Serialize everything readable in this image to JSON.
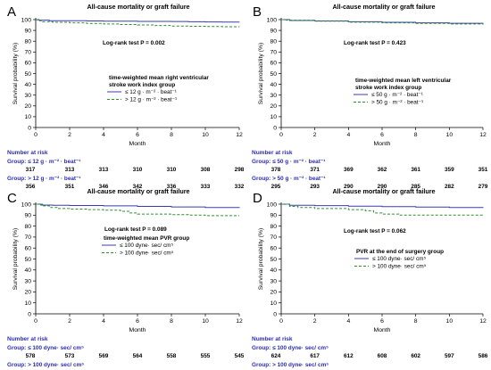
{
  "colors": {
    "series1": "#3b3bb0",
    "series2": "#2f8f2f",
    "risk_text": "#2d2db4",
    "axis": "#000000"
  },
  "chart_data": [
    {
      "panel": "A",
      "type": "line",
      "title": "All-cause mortality or graft failure",
      "xlabel": "Month",
      "ylabel": "Survival probability (%)",
      "xlim": [
        0,
        12
      ],
      "ylim": [
        0,
        100
      ],
      "xticks": [
        0,
        2,
        4,
        6,
        8,
        10,
        12
      ],
      "yticks": [
        0,
        10,
        20,
        30,
        40,
        50,
        60,
        70,
        80,
        90,
        100
      ],
      "grid": false,
      "annotation": "Log-rank test P = 0.002",
      "legend": {
        "title_lines": [
          "time-weighted mean right ventricular",
          "stroke work index group"
        ],
        "items": [
          "≤ 12 g · m⁻² · beat⁻¹",
          "> 12 g · m⁻² · beat⁻¹"
        ]
      },
      "series": [
        {
          "name": "≤ 12 g · m⁻² · beat⁻¹",
          "style": "solid",
          "points": [
            [
              0,
              100
            ],
            [
              0.2,
              99.5
            ],
            [
              0.8,
              99
            ],
            [
              2,
              99
            ],
            [
              3,
              98.8
            ],
            [
              4,
              98.6
            ],
            [
              5,
              98.5
            ],
            [
              6,
              98.4
            ],
            [
              7,
              98.3
            ],
            [
              8,
              98.2
            ],
            [
              9,
              98
            ],
            [
              10,
              97.8
            ],
            [
              11,
              97.7
            ],
            [
              12,
              97.6
            ]
          ]
        },
        {
          "name": "> 12 g · m⁻² · beat⁻¹",
          "style": "dashed",
          "points": [
            [
              0,
              100
            ],
            [
              0.1,
              99
            ],
            [
              0.4,
              98
            ],
            [
              1,
              97.5
            ],
            [
              2,
              97
            ],
            [
              3,
              96.5
            ],
            [
              4,
              96
            ],
            [
              5,
              95.5
            ],
            [
              6,
              95
            ],
            [
              7,
              94.5
            ],
            [
              8,
              94
            ],
            [
              9,
              93.8
            ],
            [
              10,
              93.6
            ],
            [
              11,
              93.4
            ],
            [
              12,
              93.3
            ]
          ]
        }
      ],
      "risk_table": {
        "header": "Number at risk",
        "groups": [
          {
            "label": "Group: ≤ 12 g · m⁻² · beat⁻¹",
            "values": [
              "317",
              "313",
              "313",
              "310",
              "310",
              "308",
              "298"
            ]
          },
          {
            "label": "Group: > 12 g · m⁻² · beat⁻¹",
            "values": [
              "356",
              "351",
              "346",
              "342",
              "336",
              "333",
              "332"
            ]
          }
        ]
      }
    },
    {
      "panel": "B",
      "type": "line",
      "title": "All-cause mortality or graft failure",
      "xlabel": "Month",
      "ylabel": "Survival probability (%)",
      "xlim": [
        0,
        12
      ],
      "ylim": [
        0,
        100
      ],
      "xticks": [
        0,
        2,
        4,
        6,
        8,
        10,
        12
      ],
      "yticks": [
        0,
        10,
        20,
        30,
        40,
        50,
        60,
        70,
        80,
        90,
        100
      ],
      "grid": false,
      "annotation": "Log-rank test P = 0.423",
      "legend": {
        "title_lines": [
          "time-weighted mean left ventricular",
          "stroke work index group"
        ],
        "items": [
          "≤ 50 g · m⁻² · beat⁻¹",
          "> 50 g · m⁻² · beat⁻¹"
        ]
      },
      "series": [
        {
          "name": "≤ 50 g · m⁻² · beat⁻¹",
          "style": "solid",
          "points": [
            [
              0,
              100
            ],
            [
              0.5,
              99.2
            ],
            [
              2,
              98.8
            ],
            [
              4,
              98
            ],
            [
              6,
              97.5
            ],
            [
              8,
              97
            ],
            [
              10,
              96.6
            ],
            [
              12,
              96.2
            ]
          ]
        },
        {
          "name": "> 50 g · m⁻² · beat⁻¹",
          "style": "dashed",
          "points": [
            [
              0,
              100
            ],
            [
              0.3,
              99.5
            ],
            [
              2,
              98.5
            ],
            [
              4,
              97.6
            ],
            [
              6,
              97
            ],
            [
              8,
              96.5
            ],
            [
              10,
              96
            ],
            [
              12,
              95.4
            ]
          ]
        }
      ],
      "risk_table": {
        "header": "Number at risk",
        "groups": [
          {
            "label": "Group: ≤ 50 g · m⁻² · beat⁻¹",
            "values": [
              "378",
              "371",
              "369",
              "362",
              "361",
              "359",
              "351"
            ]
          },
          {
            "label": "Group: > 50 g · m⁻² · beat⁻¹",
            "values": [
              "295",
              "293",
              "290",
              "290",
              "285",
              "282",
              "279"
            ]
          }
        ]
      }
    },
    {
      "panel": "C",
      "type": "line",
      "title": "All-cause mortality or graft failure",
      "xlabel": "Month",
      "ylabel": "Survival probability (%)",
      "xlim": [
        0,
        12
      ],
      "ylim": [
        0,
        100
      ],
      "xticks": [
        0,
        2,
        4,
        6,
        8,
        10,
        12
      ],
      "yticks": [
        0,
        10,
        20,
        30,
        40,
        50,
        60,
        70,
        80,
        90,
        100
      ],
      "grid": false,
      "annotation": "Log-rank test P = 0.089",
      "legend": {
        "title_lines": [
          "time-weighted mean PVR group"
        ],
        "items": [
          "≤ 100 dyne· sec/ cm⁵",
          "> 100 dyne· sec/ cm⁵"
        ]
      },
      "series": [
        {
          "name": "≤ 100 dyne· sec/ cm⁵",
          "style": "solid",
          "points": [
            [
              0,
              100
            ],
            [
              0.3,
              99.2
            ],
            [
              1,
              99
            ],
            [
              2,
              98.8
            ],
            [
              4,
              98.5
            ],
            [
              6,
              98
            ],
            [
              8,
              97.5
            ],
            [
              10,
              97
            ],
            [
              12,
              96.5
            ]
          ]
        },
        {
          "name": "> 100 dyne· sec/ cm⁵",
          "style": "dashed",
          "points": [
            [
              0,
              100
            ],
            [
              0.4,
              98.5
            ],
            [
              0.8,
              97
            ],
            [
              1.3,
              96
            ],
            [
              2,
              95.5
            ],
            [
              3,
              95
            ],
            [
              4,
              94.5
            ],
            [
              5,
              93.5
            ],
            [
              5.5,
              92
            ],
            [
              6,
              91
            ],
            [
              8,
              90.5
            ],
            [
              9,
              90
            ],
            [
              10,
              89.5
            ],
            [
              12,
              89.5
            ]
          ]
        }
      ],
      "risk_table": {
        "header": "Number at risk",
        "groups": [
          {
            "label": "Group: ≤ 100 dyne· sec/ cm⁵",
            "values": [
              "578",
              "573",
              "569",
              "564",
              "558",
              "555",
              "545"
            ]
          },
          {
            "label": "Group: > 100 dyne· sec/ cm⁵",
            "values": [
              "95",
              "91",
              "90",
              "88",
              "88",
              "86",
              "85"
            ]
          }
        ]
      }
    },
    {
      "panel": "D",
      "type": "line",
      "title": "All-cause mortality or graft failure",
      "xlabel": "Month",
      "ylabel": "Survival probability (%)",
      "xlim": [
        0,
        12
      ],
      "ylim": [
        0,
        100
      ],
      "xticks": [
        0,
        2,
        4,
        6,
        8,
        10,
        12
      ],
      "yticks": [
        0,
        10,
        20,
        30,
        40,
        50,
        60,
        70,
        80,
        90,
        100
      ],
      "grid": false,
      "annotation": "Log-rank test P = 0.062",
      "legend": {
        "title_lines": [
          "PVR at the end of surgery group"
        ],
        "items": [
          "≤ 100 dyne· sec/ cm⁵",
          "> 100 dyne· sec/ cm⁵"
        ]
      },
      "series": [
        {
          "name": "≤ 100 dyne· sec/ cm⁵",
          "style": "solid",
          "points": [
            [
              0,
              100
            ],
            [
              0.5,
              99
            ],
            [
              2,
              98.7
            ],
            [
              4,
              98.2
            ],
            [
              6,
              97.8
            ],
            [
              8,
              97.4
            ],
            [
              10,
              97
            ],
            [
              12,
              96.5
            ]
          ]
        },
        {
          "name": "> 100 dyne· sec/ cm⁵",
          "style": "dashed",
          "points": [
            [
              0,
              100
            ],
            [
              0.5,
              98
            ],
            [
              1,
              97
            ],
            [
              2,
              96
            ],
            [
              3,
              96
            ],
            [
              4,
              95
            ],
            [
              5,
              94
            ],
            [
              5.5,
              92
            ],
            [
              6,
              91
            ],
            [
              7,
              90
            ],
            [
              8,
              90
            ],
            [
              10,
              90
            ],
            [
              12,
              90
            ]
          ]
        }
      ],
      "risk_table": {
        "header": "Number at risk",
        "groups": [
          {
            "label": "Group: ≤ 100 dyne· sec/ cm⁵",
            "values": [
              "624",
              "617",
              "612",
              "608",
              "602",
              "597",
              "586"
            ]
          },
          {
            "label": "Group: > 100 dyne· sec/ cm⁵",
            "values": [
              "49",
              "47",
              "47",
              "44",
              "44",
              "44",
              "44"
            ]
          }
        ]
      }
    }
  ]
}
